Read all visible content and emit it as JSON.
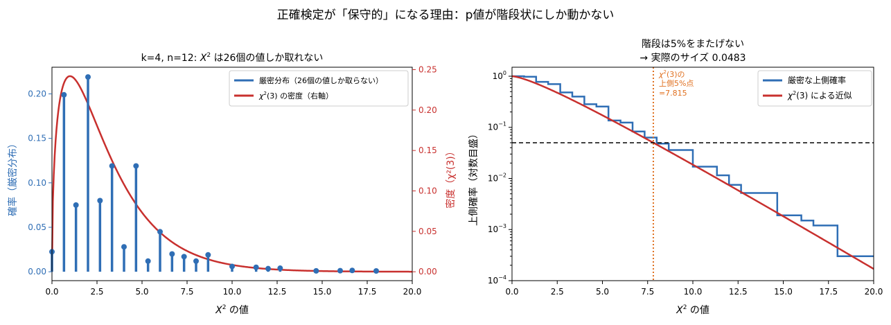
{
  "suptitle": "正確検定が「保守的」になる理由：p値が階段状にしか動かない",
  "colors": {
    "blue": "#2f6eb5",
    "red": "#c8302e",
    "orange": "#e07020",
    "black": "#000000"
  },
  "chart_data": [
    {
      "type": "bar",
      "title_parts": [
        "k=4, n=12: ",
        "X",
        "2",
        " は26個の値しか取れない"
      ],
      "xlabel_parts": [
        "X",
        "2",
        " の値"
      ],
      "ylabel_left": "確率（厳密分布）",
      "ylabel_right": "密度（χ²(3)）",
      "xlim": [
        0,
        20
      ],
      "ylim_left": [
        -0.01,
        0.23
      ],
      "ylim_right": [
        -0.011,
        0.253
      ],
      "xticks": [
        0,
        2.5,
        5,
        7.5,
        10,
        12.5,
        15,
        17.5,
        20
      ],
      "xtick_labels": [
        "0.0",
        "2.5",
        "5.0",
        "7.5",
        "10.0",
        "12.5",
        "15.0",
        "17.5",
        "20.0"
      ],
      "yticks_left": [
        0,
        0.05,
        0.1,
        0.15,
        0.2
      ],
      "ytick_labels_left": [
        "0.00",
        "0.05",
        "0.10",
        "0.15",
        "0.20"
      ],
      "yticks_right": [
        0,
        0.05,
        0.1,
        0.15,
        0.2,
        0.25
      ],
      "ytick_labels_right": [
        "0.00",
        "0.05",
        "0.10",
        "0.15",
        "0.20",
        "0.25"
      ],
      "legend": {
        "position": "upper right",
        "entries": [
          {
            "label": "厳密分布（26個の値しか取らない）",
            "color": "#2f6eb5"
          },
          {
            "label_parts": [
              "χ",
              "2",
              "(3) の密度（右軸）"
            ],
            "color": "#c8302e"
          }
        ]
      },
      "stems": {
        "x": [
          0,
          0.667,
          1.333,
          2.0,
          2.667,
          3.333,
          4.0,
          4.667,
          5.333,
          6.0,
          6.667,
          7.333,
          8.0,
          8.667,
          10.0,
          11.333,
          12.0,
          12.667,
          14.667,
          16.0,
          16.667,
          18.0
        ],
        "y": [
          0.0225,
          0.199,
          0.075,
          0.219,
          0.08,
          0.119,
          0.028,
          0.119,
          0.012,
          0.045,
          0.02,
          0.017,
          0.012,
          0.019,
          0.006,
          0.005,
          0.0035,
          0.004,
          0.001,
          0.0012,
          0.0015,
          0.0009
        ]
      },
      "density": {
        "df": 3,
        "axis": "right"
      }
    },
    {
      "type": "line",
      "title_line1": "階段は5%をまたげない",
      "title_line2": "→ 実際のサイズ 0.0483",
      "xlabel_parts": [
        "X",
        "2",
        " の値"
      ],
      "ylabel": "上側確率（対数目盛）",
      "xlim": [
        0,
        20
      ],
      "ylim": [
        0.0001,
        1.5
      ],
      "yscale": "log",
      "xticks": [
        0,
        2.5,
        5,
        7.5,
        10,
        12.5,
        15,
        17.5,
        20
      ],
      "xtick_labels": [
        "0.0",
        "2.5",
        "5.0",
        "7.5",
        "10.0",
        "12.5",
        "15.0",
        "17.5",
        "20.0"
      ],
      "ytick_labels": [
        {
          "base": "10",
          "exp": "0",
          "value": 1
        },
        {
          "base": "10",
          "exp": "−1",
          "value": 0.1
        },
        {
          "base": "10",
          "exp": "−2",
          "value": 0.01
        },
        {
          "base": "10",
          "exp": "−3",
          "value": 0.001
        },
        {
          "base": "10",
          "exp": "−4",
          "value": 0.0001
        }
      ],
      "legend": {
        "position": "upper right",
        "entries": [
          {
            "label": "厳密な上側確率",
            "color": "#2f6eb5"
          },
          {
            "label_parts": [
              "χ",
              "2",
              "(3) による近似"
            ],
            "color": "#c8302e"
          }
        ]
      },
      "exact_step": {
        "x": [
          0,
          0.667,
          1.333,
          2.0,
          2.667,
          3.333,
          4.0,
          4.667,
          5.333,
          6.0,
          6.667,
          7.333,
          8.0,
          8.667,
          10.0,
          11.333,
          12.0,
          12.667,
          14.667,
          16.0,
          16.667,
          18.0,
          20.0
        ],
        "y": [
          1.0,
          0.976,
          0.777,
          0.7,
          0.482,
          0.4,
          0.283,
          0.255,
          0.136,
          0.124,
          0.083,
          0.063,
          0.048,
          0.036,
          0.017,
          0.0115,
          0.0075,
          0.0052,
          0.0019,
          0.0015,
          0.0012,
          0.0003,
          0.0003
        ]
      },
      "approx": {
        "df": 3
      },
      "hline": {
        "y": 0.05,
        "style": "dashed",
        "color": "#000000"
      },
      "vline": {
        "x": 7.815,
        "style": "dotted",
        "color": "#e07020"
      },
      "annotation": {
        "x": 7.815,
        "line1_parts": [
          "χ",
          "2",
          "(3)の"
        ],
        "line2": "上側5%点",
        "line3": "=7.815"
      }
    }
  ]
}
